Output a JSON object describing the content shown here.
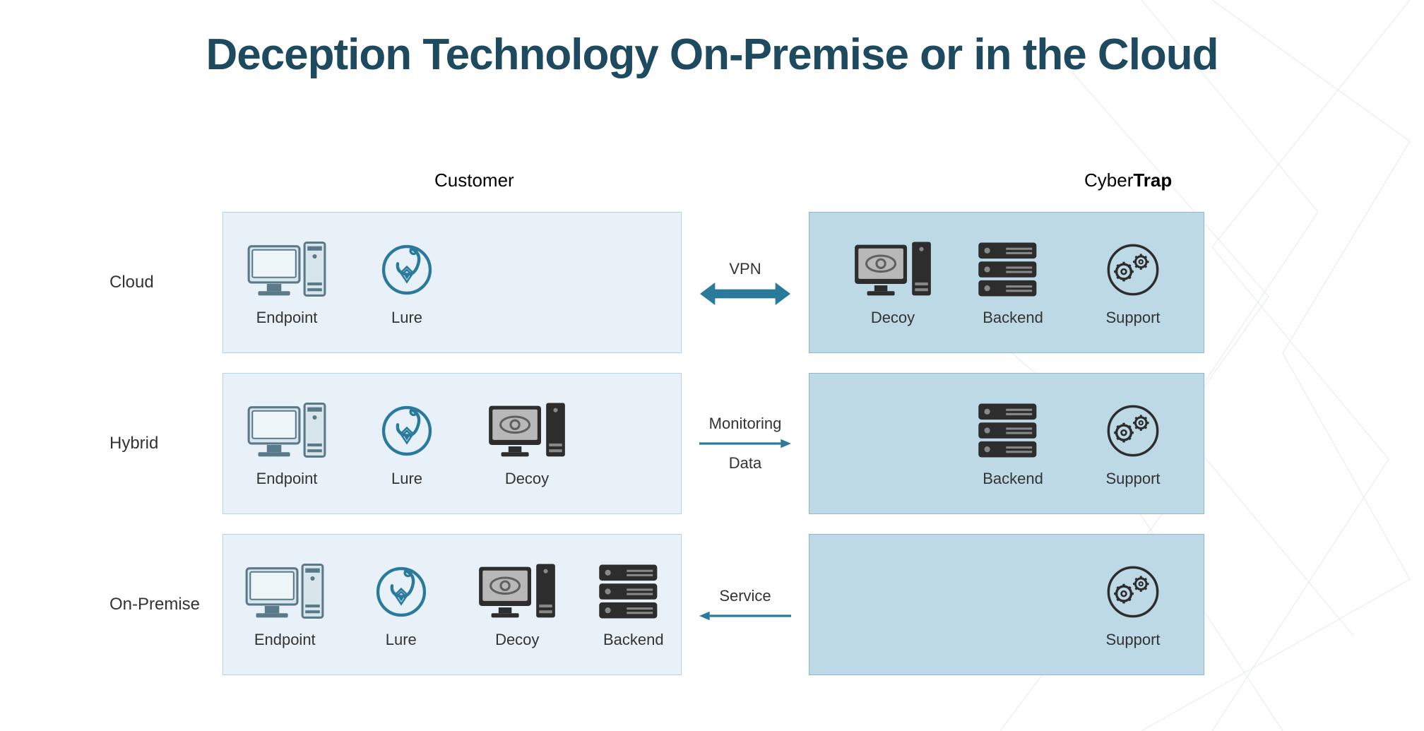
{
  "title": "Deception Technology On-Premise or in the Cloud",
  "title_color": "#1d4a5f",
  "columns": {
    "customer": "Customer",
    "cybertrap_prefix": "Cyber",
    "cybertrap_bold": "Trap"
  },
  "colors": {
    "customer_box_bg": "#e8f1f7",
    "customer_box_border": "#b8d4e3",
    "cybertrap_box_bg": "#bdd9e6",
    "cybertrap_box_border": "#8fb8cc",
    "arrow_color": "#2a7a9c",
    "icon_blue": "#5a7a8a",
    "icon_dark": "#2d2d2d",
    "text_color": "#333333"
  },
  "rows": [
    {
      "label": "Cloud",
      "customer_items": [
        {
          "type": "endpoint",
          "label": "Endpoint"
        },
        {
          "type": "lure",
          "label": "Lure"
        }
      ],
      "connector": {
        "labels": [
          "VPN"
        ],
        "arrow": "double"
      },
      "cybertrap_items": [
        {
          "type": "decoy",
          "label": "Decoy"
        },
        {
          "type": "backend",
          "label": "Backend"
        },
        {
          "type": "support",
          "label": "Support"
        }
      ]
    },
    {
      "label": "Hybrid",
      "customer_items": [
        {
          "type": "endpoint",
          "label": "Endpoint"
        },
        {
          "type": "lure",
          "label": "Lure"
        },
        {
          "type": "decoy",
          "label": "Decoy"
        }
      ],
      "connector": {
        "labels": [
          "Monitoring",
          "Data"
        ],
        "arrow": "right"
      },
      "cybertrap_items": [
        {
          "type": "backend",
          "label": "Backend"
        },
        {
          "type": "support",
          "label": "Support"
        }
      ]
    },
    {
      "label": "On-Premise",
      "customer_items": [
        {
          "type": "endpoint",
          "label": "Endpoint"
        },
        {
          "type": "lure",
          "label": "Lure"
        },
        {
          "type": "decoy",
          "label": "Decoy"
        },
        {
          "type": "backend",
          "label": "Backend"
        }
      ],
      "connector": {
        "labels": [
          "Service"
        ],
        "arrow": "left"
      },
      "cybertrap_items": [
        {
          "type": "support",
          "label": "Support"
        }
      ]
    }
  ]
}
